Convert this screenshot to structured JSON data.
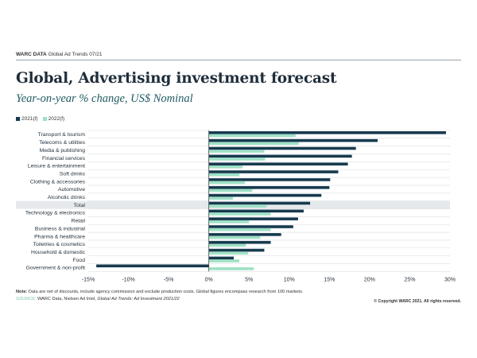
{
  "header": {
    "brand": "WARC DATA",
    "series": "Global Ad Trends 07/21"
  },
  "title": "Global, Advertising investment forecast",
  "subtitle": "Year-on-year % change, US$ Nominal",
  "colors": {
    "dark": "#173a4f",
    "light": "#9fe0c6",
    "highlight_row": "#e6e9ec",
    "grid": "#d9dde0"
  },
  "chart_data": {
    "type": "bar",
    "orientation": "horizontal",
    "title": "Global, Advertising investment forecast",
    "subtitle": "Year-on-year % change, US$ Nominal",
    "xlabel": "",
    "ylabel": "",
    "xlim": [
      -15,
      30
    ],
    "x_ticks": [
      -15,
      -10,
      -5,
      0,
      5,
      10,
      15,
      20,
      25,
      30
    ],
    "x_tick_labels": [
      "-15%",
      "-10%",
      "-5%",
      "0%",
      "5%",
      "10%",
      "15%",
      "20%",
      "25%",
      "30%"
    ],
    "legend_position": "top-left",
    "highlight_category": "Total",
    "categories": [
      "Transport & tourism",
      "Telecoms & utilities",
      "Media & publishing",
      "Financial services",
      "Leisure & entertainment",
      "Soft drinks",
      "Clothing & accessories",
      "Automotive",
      "Alcoholic drinks",
      "Total",
      "Technology & electronics",
      "Retail",
      "Business & industrial",
      "Pharma & healthcare",
      "Toiletries & cosmetics",
      "Household & domestic",
      "Food",
      "Government & non-profit"
    ],
    "series": [
      {
        "name": "2021(f)",
        "color": "#173a4f",
        "values": [
          29.5,
          21.0,
          18.3,
          17.8,
          17.3,
          16.1,
          15.1,
          15.0,
          14.0,
          12.6,
          11.8,
          11.1,
          10.5,
          9.0,
          7.7,
          6.9,
          3.1,
          -14.0
        ]
      },
      {
        "name": "2022(f)",
        "color": "#9fe0c6",
        "values": [
          10.8,
          11.2,
          6.9,
          7.0,
          4.2,
          3.8,
          4.5,
          5.4,
          3.0,
          7.2,
          7.7,
          5.0,
          7.7,
          6.4,
          4.6,
          4.9,
          3.8,
          5.6
        ]
      }
    ]
  },
  "legend": {
    "s1": "2021(f)",
    "s2": "2022(f)"
  },
  "footer": {
    "note_label": "Note:",
    "note_text": "Data are net of discounts, include agency commission and exclude production costs. Global figures encompass research from 100 markets.",
    "source_label": "SOURCE:",
    "source_text": "WARC Data, Nielsen Ad Intel,",
    "source_italic": "Global Ad Trends: Ad Investment 2021/22",
    "copyright": "© Copyright WARC 2021. All rights reserved."
  }
}
